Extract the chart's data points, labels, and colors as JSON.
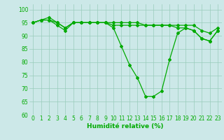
{
  "xlabel": "Humidité relative (%)",
  "ylim": [
    60,
    102
  ],
  "xlim": [
    -0.5,
    23.5
  ],
  "yticks": [
    60,
    65,
    70,
    75,
    80,
    85,
    90,
    95,
    100
  ],
  "xticks": [
    0,
    1,
    2,
    3,
    4,
    5,
    6,
    7,
    8,
    9,
    10,
    11,
    12,
    13,
    14,
    15,
    16,
    17,
    18,
    19,
    20,
    21,
    22,
    23
  ],
  "background_color": "#cce8e8",
  "grid_color": "#99ccbb",
  "line_color": "#00aa00",
  "lines": [
    [
      95,
      96,
      97,
      95,
      93,
      95,
      95,
      95,
      95,
      95,
      93,
      86,
      79,
      74,
      67,
      67,
      69,
      81,
      91,
      93,
      92,
      89,
      88,
      92
    ],
    [
      95,
      96,
      96,
      94,
      92,
      95,
      95,
      95,
      95,
      95,
      94,
      94,
      94,
      94,
      94,
      94,
      94,
      94,
      93,
      93,
      92,
      89,
      88,
      92
    ],
    [
      95,
      96,
      96,
      95,
      93,
      95,
      95,
      95,
      95,
      95,
      95,
      95,
      95,
      95,
      94,
      94,
      94,
      94,
      94,
      94,
      94,
      92,
      91,
      93
    ]
  ]
}
